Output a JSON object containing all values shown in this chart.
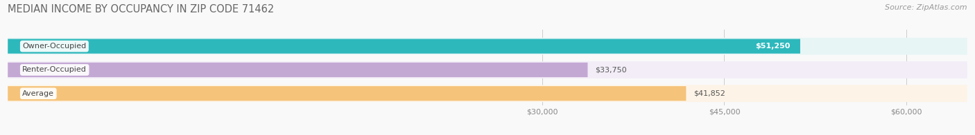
{
  "title": "MEDIAN INCOME BY OCCUPANCY IN ZIP CODE 71462",
  "source": "Source: ZipAtlas.com",
  "categories": [
    "Owner-Occupied",
    "Renter-Occupied",
    "Average"
  ],
  "values": [
    51250,
    33750,
    41852
  ],
  "labels": [
    "$51,250",
    "$33,750",
    "$41,852"
  ],
  "bar_colors": [
    "#2db8bc",
    "#c4a8d4",
    "#f5c37a"
  ],
  "bar_bg_colors": [
    "#e8f5f5",
    "#f2edf7",
    "#fdf4e7"
  ],
  "label_inside_bar": [
    true,
    false,
    false
  ],
  "label_colors": [
    "#ffffff",
    "#555555",
    "#555555"
  ],
  "xlim_left": -14000,
  "xlim_right": 65000,
  "xticks": [
    30000,
    45000,
    60000
  ],
  "xticklabels": [
    "$30,000",
    "$45,000",
    "$60,000"
  ],
  "title_fontsize": 10.5,
  "source_fontsize": 8,
  "tick_fontsize": 8,
  "cat_fontsize": 8,
  "val_fontsize": 8,
  "bar_height": 0.62,
  "figsize": [
    14.06,
    1.96
  ],
  "dpi": 100,
  "bg_color": "#f9f9f9"
}
